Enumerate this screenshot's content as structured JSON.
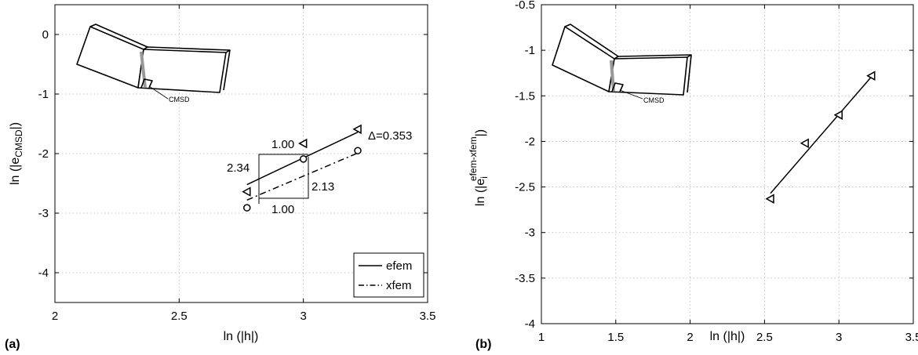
{
  "chart_data": [
    {
      "type": "line",
      "panel_label": "(a)",
      "xlabel": "ln (|h|)",
      "ylabel_main": "ln (|e",
      "ylabel_sub": "CMSD",
      "ylabel_end": "|)",
      "xlim": [
        2,
        3.5
      ],
      "ylim": [
        -4.5,
        0.5
      ],
      "xticks": [
        2,
        2.5,
        3,
        3.5
      ],
      "xtick_labels": [
        "2",
        "2.5",
        "3",
        "3.5"
      ],
      "yticks": [
        0,
        -1,
        -2,
        -3,
        -4
      ],
      "ytick_labels": [
        "0",
        "-1",
        "-2",
        "-3",
        "-4"
      ],
      "grid": true,
      "legend_position": "bottom-right",
      "series": [
        {
          "name": "efem",
          "line_style": "solid",
          "marker": "triangle-left",
          "x": [
            2.773,
            3.0,
            3.219
          ],
          "y": [
            -2.64,
            -1.83,
            -1.59
          ]
        },
        {
          "name": "xfem",
          "line_style": "dash-dot",
          "marker": "circle",
          "x": [
            2.773,
            3.0,
            3.219
          ],
          "y": [
            -2.91,
            -2.09,
            -1.95
          ]
        }
      ],
      "fit_lines": [
        {
          "series": "efem",
          "x": [
            2.773,
            3.219
          ],
          "y": [
            -2.52,
            -1.64
          ]
        },
        {
          "series": "xfem",
          "x": [
            2.773,
            3.219
          ],
          "y": [
            -2.78,
            -1.99
          ]
        }
      ],
      "slope_triangles": [
        {
          "run_label": "1.00",
          "rise_label": "2.34"
        },
        {
          "run_label": "1.00",
          "rise_label": "2.13"
        }
      ],
      "annotations": {
        "delta": "Δ=0.353"
      },
      "inset_label": "CMSD"
    },
    {
      "type": "line",
      "panel_label": "(b)",
      "xlabel": "ln (|h|)",
      "ylabel_main": "ln (|e",
      "ylabel_sub": "i",
      "ylabel_sup": "efem-xfem",
      "ylabel_end": "|)",
      "xlim": [
        1,
        3.5
      ],
      "ylim": [
        -4,
        -0.5
      ],
      "xticks": [
        1,
        1.5,
        2,
        2.5,
        3,
        3.5
      ],
      "xtick_labels": [
        "1",
        "1.5",
        "2",
        "2.5",
        "3",
        "3.5"
      ],
      "yticks": [
        -0.5,
        -1,
        -1.5,
        -2,
        -2.5,
        -3,
        -3.5,
        -4
      ],
      "ytick_labels": [
        "-0.5",
        "-1",
        "-1.5",
        "-2",
        "-2.5",
        "-3",
        "-3.5",
        "-4"
      ],
      "grid": true,
      "series": [
        {
          "line_style": "solid",
          "marker": "triangle-left",
          "x": [
            2.54,
            2.773,
            3.0,
            3.219
          ],
          "y": [
            -2.63,
            -2.02,
            -1.71,
            -1.28
          ]
        }
      ],
      "fit_lines": [
        {
          "x": [
            2.54,
            3.219
          ],
          "y": [
            -2.57,
            -1.29
          ]
        }
      ],
      "inset_label": "CMSD"
    }
  ]
}
